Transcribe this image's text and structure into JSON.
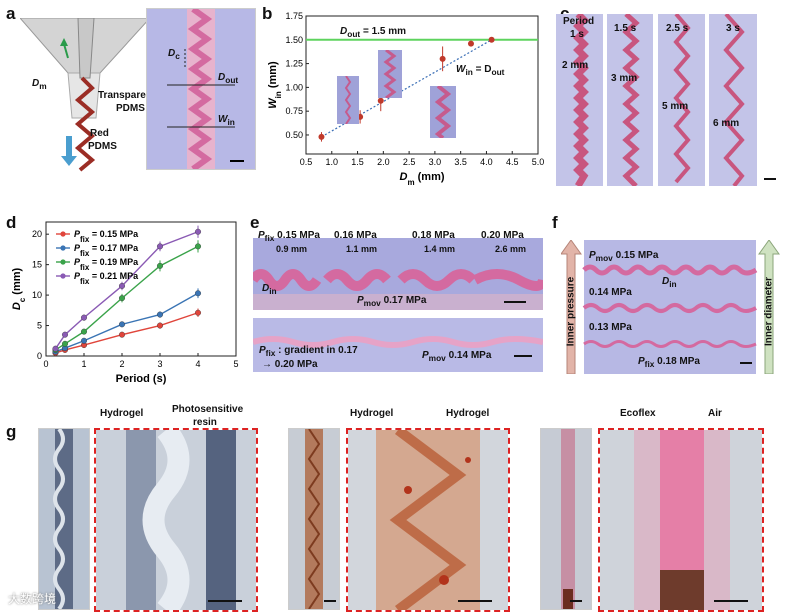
{
  "panels": {
    "a": {
      "label": "a",
      "dm": "D",
      "dm_sub": "m",
      "transparent": "Transparent",
      "pdms1": "PDMS",
      "red": "Red",
      "pdms2": "PDMS",
      "dc": "D",
      "dc_sub": "c",
      "dout": "D",
      "dout_sub": "out",
      "win": "W",
      "win_sub": "in"
    },
    "b": {
      "label": "b",
      "dout_line": "D",
      "dout_line_sub": "out",
      "dout_line_val": " = 1.5 mm",
      "eq": "W",
      "eq_sub": "in",
      "eq_mid": " = D",
      "eq_sub2": "out"
    },
    "c": {
      "label": "c",
      "period": "Period",
      "t1": "1 s",
      "t2": "1.5 s",
      "t3": "2.5 s",
      "t4": "3 s",
      "m1": "2 mm",
      "m2": "3 mm",
      "m3": "5 mm",
      "m4": "6 mm"
    },
    "d": {
      "label": "d"
    },
    "e": {
      "label": "e",
      "pfix": "P",
      "pfix_sub": "fix",
      "p1": " 0.15 MPa",
      "p2": "0.16 MPa",
      "p3": "0.18 MPa",
      "p4": "0.20 MPa",
      "w1": "0.9 mm",
      "w2": "1.1 mm",
      "w3": "1.4 mm",
      "w4": "2.6 mm",
      "din": "D",
      "din_sub": "in",
      "pmov": "P",
      "pmov_sub": "mov",
      "pmov1": " 0.17 MPa",
      "grad_a": " : gradient in 0.17",
      "grad_b": "→ 0.20 MPa",
      "pmov2": " 0.14 MPa"
    },
    "f": {
      "label": "f",
      "pmov": "P",
      "pmov_sub": "mov",
      "v1": " 0.15 MPa",
      "v2": "0.14 MPa",
      "v3": "0.13 MPa",
      "din": "D",
      "din_sub": "in",
      "pfix": "P",
      "pfix_sub": "fix",
      "pfix_val": " 0.18 MPa",
      "left_arrow": "Inner pressure",
      "right_arrow": "Inner diameter"
    },
    "g": {
      "label": "g",
      "h1": "Hydrogel",
      "ps1": "Photosensitive",
      "ps2": "resin",
      "h2": "Hydrogel",
      "h3": "Hydrogel",
      "eco": "Ecoflex",
      "air": "Air"
    }
  },
  "watermark": "大数跨境",
  "chart_data": [
    {
      "type": "scatter",
      "panel": "b",
      "xlabel": "D_m (mm)",
      "ylabel": "W_in (mm)",
      "xlim": [
        0.5,
        5.0
      ],
      "ylim": [
        0.3,
        1.75
      ],
      "xticks": [
        0.5,
        1.0,
        1.5,
        2.0,
        2.5,
        3.0,
        3.5,
        4.0,
        4.5,
        5.0
      ],
      "yticks": [
        0.5,
        0.75,
        1.0,
        1.25,
        1.5,
        1.75
      ],
      "x": [
        0.8,
        1.55,
        1.95,
        3.15,
        3.7,
        4.1
      ],
      "y": [
        0.48,
        0.69,
        0.86,
        1.3,
        1.46,
        1.5
      ],
      "err": [
        0.05,
        0.07,
        0.11,
        0.13,
        0.03,
        0.02
      ],
      "reference_line": {
        "label": "D_out = 1.5 mm",
        "y": 1.5
      },
      "fit": "dashed linear"
    },
    {
      "type": "line",
      "panel": "d",
      "xlabel": "Period (s)",
      "ylabel": "D_c (mm)",
      "xlim": [
        0,
        5
      ],
      "ylim": [
        0,
        22
      ],
      "xticks": [
        0,
        1,
        2,
        3,
        4,
        5
      ],
      "yticks": [
        0,
        5,
        10,
        15,
        20
      ],
      "x": [
        0.25,
        0.5,
        1,
        2,
        3,
        4
      ],
      "series": [
        {
          "name": "P_fix = 0.15 MPa",
          "color": "#e0453b",
          "values": [
            0.5,
            1.0,
            1.8,
            3.5,
            5.0,
            7.1
          ],
          "err": [
            0.2,
            0.3,
            0.3,
            0.4,
            0.5,
            0.7
          ]
        },
        {
          "name": "P_fix = 0.17 MPa",
          "color": "#3a74b4",
          "values": [
            0.7,
            1.3,
            2.5,
            5.2,
            6.8,
            10.3
          ],
          "err": [
            0.2,
            0.3,
            0.3,
            0.4,
            0.5,
            0.8
          ]
        },
        {
          "name": "P_fix = 0.19 MPa",
          "color": "#3aa34a",
          "values": [
            1.0,
            2.0,
            4.0,
            9.5,
            14.8,
            18.0
          ],
          "err": [
            0.3,
            0.3,
            0.4,
            0.7,
            0.9,
            1.0
          ]
        },
        {
          "name": "P_fix = 0.21 MPa",
          "color": "#8a5ab4",
          "values": [
            1.2,
            3.5,
            6.3,
            11.5,
            18.0,
            20.4
          ],
          "err": [
            0.3,
            0.4,
            0.5,
            0.7,
            0.8,
            1.0
          ]
        }
      ]
    }
  ]
}
